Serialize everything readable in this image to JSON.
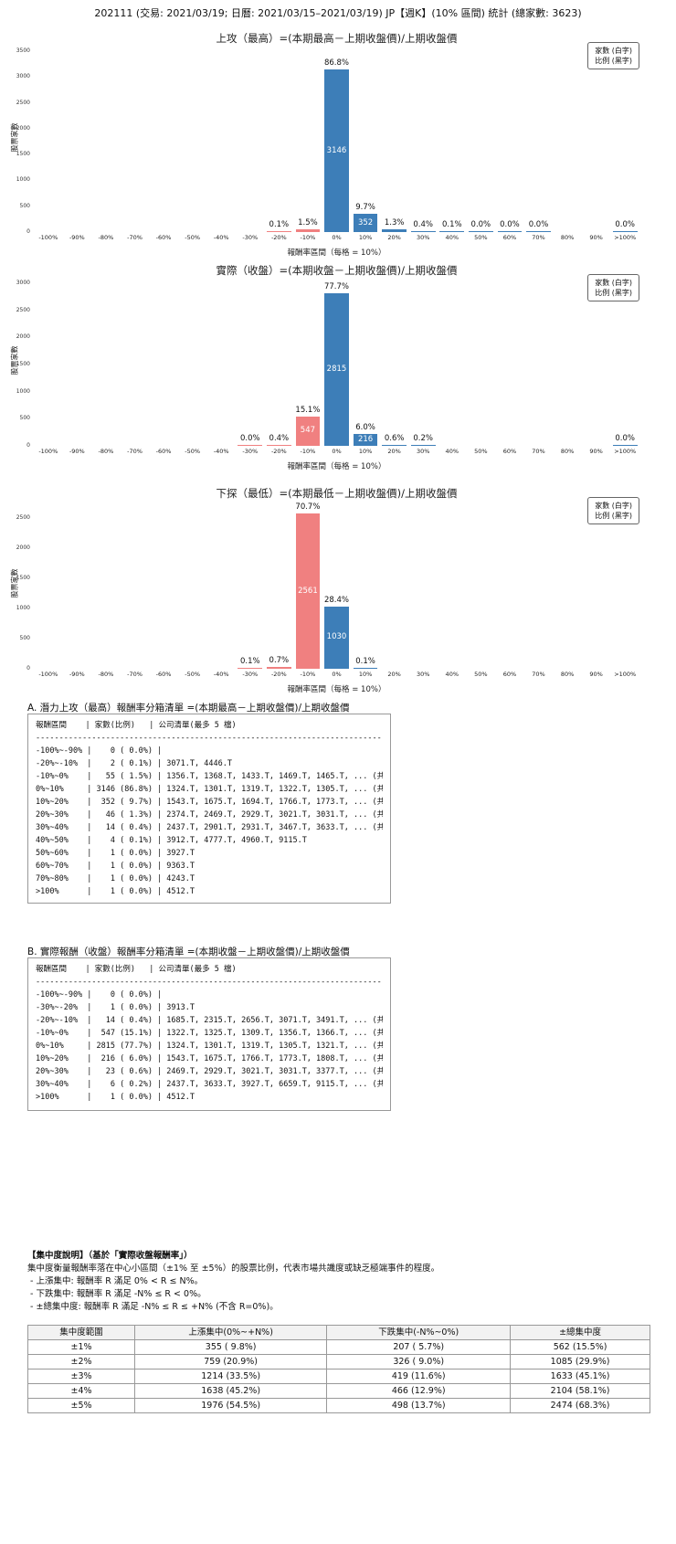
{
  "page_title": "202111 (交易: 2021/03/19; 日曆: 2021/03/15–2021/03/19) JP【週K】(10% 區間) 統計 (總家數: 3623)",
  "colors": {
    "positive_bar": "#3d7eb8",
    "negative_bar": "#f08080",
    "bar_count_text": "#ffffff",
    "pct_text": "#111111"
  },
  "chart_data": [
    {
      "type": "bar",
      "title": "上攻（最高）=(本期最高－上期收盤價)/上期收盤價",
      "ylabel": "股票家數",
      "xlabel": "報酬率區間（每格 = 10%）",
      "legend": [
        "家數 (白字)",
        "比例 (黑字)"
      ],
      "categories": [
        "-100%",
        "-90%",
        "-80%",
        "-70%",
        "-60%",
        "-50%",
        "-40%",
        "-30%",
        "-20%",
        "-10%",
        "0%",
        "10%",
        "20%",
        "30%",
        "40%",
        "50%",
        "60%",
        "70%",
        "80%",
        "90%",
        ">100%"
      ],
      "values": [
        0,
        0,
        0,
        0,
        0,
        0,
        0,
        0,
        2,
        55,
        3146,
        352,
        46,
        14,
        4,
        1,
        1,
        1,
        0,
        0,
        1
      ],
      "pct_labels": [
        "",
        "",
        "",
        "",
        "",
        "",
        "",
        "",
        "0.1%",
        "1.5%",
        "86.8%",
        "9.7%",
        "1.3%",
        "0.4%",
        "0.1%",
        "0.0%",
        "0.0%",
        "0.0%",
        "",
        "",
        "0.0%"
      ],
      "bar_labels": [
        "",
        "",
        "",
        "",
        "",
        "",
        "",
        "",
        "",
        "",
        "3146",
        "352",
        "",
        "",
        "",
        "",
        "",
        "",
        "",
        "",
        ""
      ],
      "ylim": [
        0,
        3500
      ],
      "yticks": [
        0,
        500,
        1000,
        1500,
        2000,
        2500,
        3000,
        3500
      ],
      "grid": false,
      "legend_position": "upper right"
    },
    {
      "type": "bar",
      "title": "實際（收盤）=(本期收盤－上期收盤價)/上期收盤價",
      "ylabel": "股票家數",
      "xlabel": "報酬率區間（每格 = 10%）",
      "legend": [
        "家數 (白字)",
        "比例 (黑字)"
      ],
      "categories": [
        "-100%",
        "-90%",
        "-80%",
        "-70%",
        "-60%",
        "-50%",
        "-40%",
        "-30%",
        "-20%",
        "-10%",
        "0%",
        "10%",
        "20%",
        "30%",
        "40%",
        "50%",
        "60%",
        "70%",
        "80%",
        "90%",
        ">100%"
      ],
      "values": [
        0,
        0,
        0,
        0,
        0,
        0,
        0,
        1,
        14,
        547,
        2815,
        216,
        23,
        6,
        0,
        0,
        0,
        0,
        0,
        0,
        1
      ],
      "pct_labels": [
        "",
        "",
        "",
        "",
        "",
        "",
        "",
        "0.0%",
        "0.4%",
        "15.1%",
        "77.7%",
        "6.0%",
        "0.6%",
        "0.2%",
        "",
        "",
        "",
        "",
        "",
        "",
        "0.0%"
      ],
      "bar_labels": [
        "",
        "",
        "",
        "",
        "",
        "",
        "",
        "",
        "",
        "547",
        "2815",
        "216",
        "",
        "",
        "",
        "",
        "",
        "",
        "",
        "",
        ""
      ],
      "ylim": [
        0,
        3000
      ],
      "yticks": [
        0,
        500,
        1000,
        1500,
        2000,
        2500,
        3000
      ],
      "grid": false,
      "legend_position": "upper right"
    },
    {
      "type": "bar",
      "title": "下探（最低）=(本期最低－上期收盤價)/上期收盤價",
      "ylabel": "股票家數",
      "xlabel": "報酬率區間（每格 = 10%）",
      "legend": [
        "家數 (白字)",
        "比例 (黑字)"
      ],
      "categories": [
        "-100%",
        "-90%",
        "-80%",
        "-70%",
        "-60%",
        "-50%",
        "-40%",
        "-30%",
        "-20%",
        "-10%",
        "0%",
        "10%",
        "20%",
        "30%",
        "40%",
        "50%",
        "60%",
        "70%",
        "80%",
        "90%",
        ">100%"
      ],
      "values": [
        0,
        0,
        0,
        0,
        0,
        0,
        0,
        4,
        25,
        2561,
        1030,
        4,
        0,
        0,
        0,
        0,
        0,
        0,
        0,
        0,
        0
      ],
      "pct_labels": [
        "",
        "",
        "",
        "",
        "",
        "",
        "",
        "0.1%",
        "0.7%",
        "70.7%",
        "28.4%",
        "0.1%",
        "",
        "",
        "",
        "",
        "",
        "",
        "",
        "",
        ""
      ],
      "bar_labels": [
        "",
        "",
        "",
        "",
        "",
        "",
        "",
        "",
        "",
        "2561",
        "1030",
        "",
        "",
        "",
        "",
        "",
        "",
        "",
        "",
        "",
        ""
      ],
      "ylim": [
        0,
        2689
      ],
      "yticks": [
        0,
        500,
        1000,
        1500,
        2000,
        2500
      ],
      "grid": false,
      "legend_position": "upper right"
    }
  ],
  "section_a": {
    "heading": "A. 潛力上攻（最高）報酬率分箱清單 =(本期最高－上期收盤價)/上期收盤價",
    "columns": "報酬區間    | 家數(比例)   | 公司清單(最多 5 檔)",
    "separator": "---------------------------------------------------------------------------",
    "rows": [
      "-100%~-90% |    0 ( 0.0%) |",
      "-20%~-10%  |    2 ( 0.1%) | 3071.T, 4446.T",
      "-10%~0%    |   55 ( 1.5%) | 1356.T, 1368.T, 1433.T, 1469.T, 1465.T, ... (共 55 檔)",
      "0%~10%     | 3146 (86.8%) | 1324.T, 1301.T, 1319.T, 1322.T, 1305.T, ... (共 3146 檔)",
      "10%~20%    |  352 ( 9.7%) | 1543.T, 1675.T, 1694.T, 1766.T, 1773.T, ... (共 352 檔)",
      "20%~30%    |   46 ( 1.3%) | 2374.T, 2469.T, 2929.T, 3021.T, 3031.T, ... (共 46 檔)",
      "30%~40%    |   14 ( 0.4%) | 2437.T, 2901.T, 2931.T, 3467.T, 3633.T, ... (共 14 檔)",
      "40%~50%    |    4 ( 0.1%) | 3912.T, 4777.T, 4960.T, 9115.T",
      "50%~60%    |    1 ( 0.0%) | 3927.T",
      "60%~70%    |    1 ( 0.0%) | 9363.T",
      "70%~80%    |    1 ( 0.0%) | 4243.T",
      ">100%      |    1 ( 0.0%) | 4512.T"
    ]
  },
  "section_b": {
    "heading": "B. 實際報酬（收盤）報酬率分箱清單 =(本期收盤－上期收盤價)/上期收盤價",
    "columns": "報酬區間    | 家數(比例)   | 公司清單(最多 5 檔)",
    "separator": "---------------------------------------------------------------------------",
    "rows": [
      "-100%~-90% |    0 ( 0.0%) |",
      "-30%~-20%  |    1 ( 0.0%) | 3913.T",
      "-20%~-10%  |   14 ( 0.4%) | 1685.T, 2315.T, 2656.T, 3071.T, 3491.T, ... (共 14 檔)",
      "-10%~0%    |  547 (15.1%) | 1322.T, 1325.T, 1309.T, 1356.T, 1366.T, ... (共 547 檔)",
      "0%~10%     | 2815 (77.7%) | 1324.T, 1301.T, 1319.T, 1305.T, 1321.T, ... (共 2815 檔)",
      "10%~20%    |  216 ( 6.0%) | 1543.T, 1675.T, 1766.T, 1773.T, 1808.T, ... (共 216 檔)",
      "20%~30%    |   23 ( 0.6%) | 2469.T, 2929.T, 3021.T, 3031.T, 3377.T, ... (共 23 檔)",
      "30%~40%    |    6 ( 0.2%) | 2437.T, 3633.T, 3927.T, 6659.T, 9115.T, ... (共 6 檔)",
      ">100%      |    1 ( 0.0%) | 4512.T"
    ]
  },
  "concentration": {
    "note_title": "【集中度說明】（基於「實際收盤報酬率」）",
    "note_lines": [
      "集中度衡量報酬率落在中心小區間（±1% 至 ±5%）的股票比例，代表市場共識度或缺乏極端事件的程度。",
      " - 上漲集中: 報酬率 R 滿足 0% < R ≤ N%。",
      " - 下跌集中: 報酬率 R 滿足 -N% ≤ R < 0%。",
      " - ±總集中度: 報酬率 R 滿足 -N% ≤ R ≤ +N% (不含 R=0%)。"
    ],
    "table": {
      "headers": [
        "集中度範圍",
        "上漲集中(0%~+N%)",
        "下跌集中(-N%~0%)",
        "±總集中度"
      ],
      "rows": [
        [
          "±1%",
          "355 ( 9.8%)",
          "207 ( 5.7%)",
          "562 (15.5%)"
        ],
        [
          "±2%",
          "759 (20.9%)",
          "326 ( 9.0%)",
          "1085 (29.9%)"
        ],
        [
          "±3%",
          "1214 (33.5%)",
          "419 (11.6%)",
          "1633 (45.1%)"
        ],
        [
          "±4%",
          "1638 (45.2%)",
          "466 (12.9%)",
          "2104 (58.1%)"
        ],
        [
          "±5%",
          "1976 (54.5%)",
          "498 (13.7%)",
          "2474 (68.3%)"
        ]
      ]
    }
  }
}
